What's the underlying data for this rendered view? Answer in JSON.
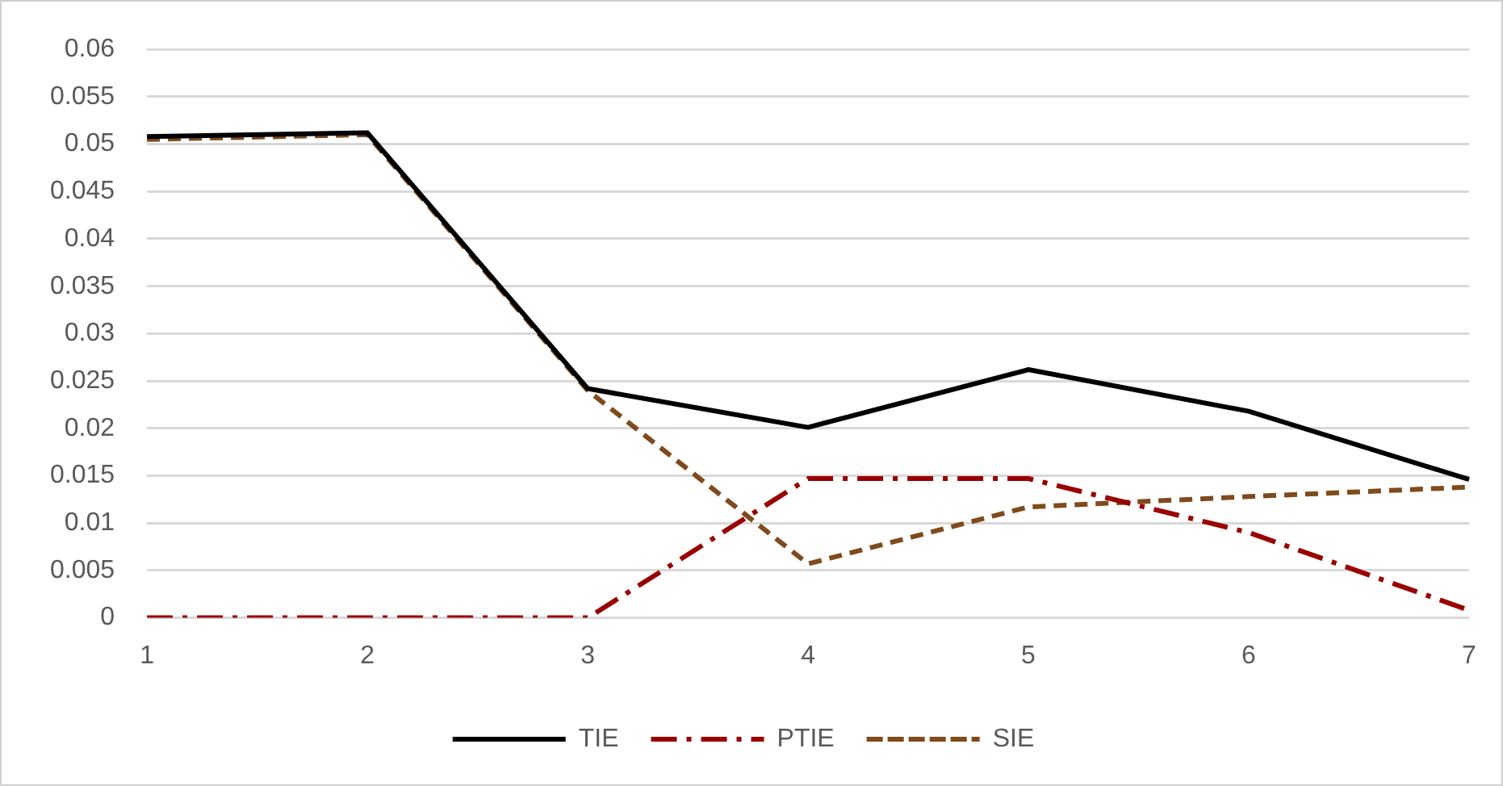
{
  "chart_data": {
    "type": "line",
    "categories": [
      "1",
      "2",
      "3",
      "4",
      "5",
      "6",
      "7"
    ],
    "series": [
      {
        "name": "TIE",
        "color": "#000000",
        "line_style": "solid",
        "values": [
          0.0508,
          0.0512,
          0.0242,
          0.0201,
          0.0262,
          0.0218,
          0.0146
        ]
      },
      {
        "name": "PTIE",
        "color": "#990000",
        "line_style": "dashdot",
        "values": [
          0,
          0,
          0,
          0.0147,
          0.0147,
          0.009,
          0.0008
        ]
      },
      {
        "name": "SIE",
        "color": "#7f4a1c",
        "line_style": "dashed",
        "values": [
          0.0505,
          0.051,
          0.024,
          0.0057,
          0.0117,
          0.0128,
          0.0138
        ]
      }
    ],
    "ylim": [
      0,
      0.06
    ],
    "yticks": [
      0,
      0.005,
      0.01,
      0.015,
      0.02,
      0.025,
      0.03,
      0.035,
      0.04,
      0.045,
      0.05,
      0.055,
      0.06
    ],
    "grid": "y",
    "legend": "bottom",
    "marker": "none"
  }
}
